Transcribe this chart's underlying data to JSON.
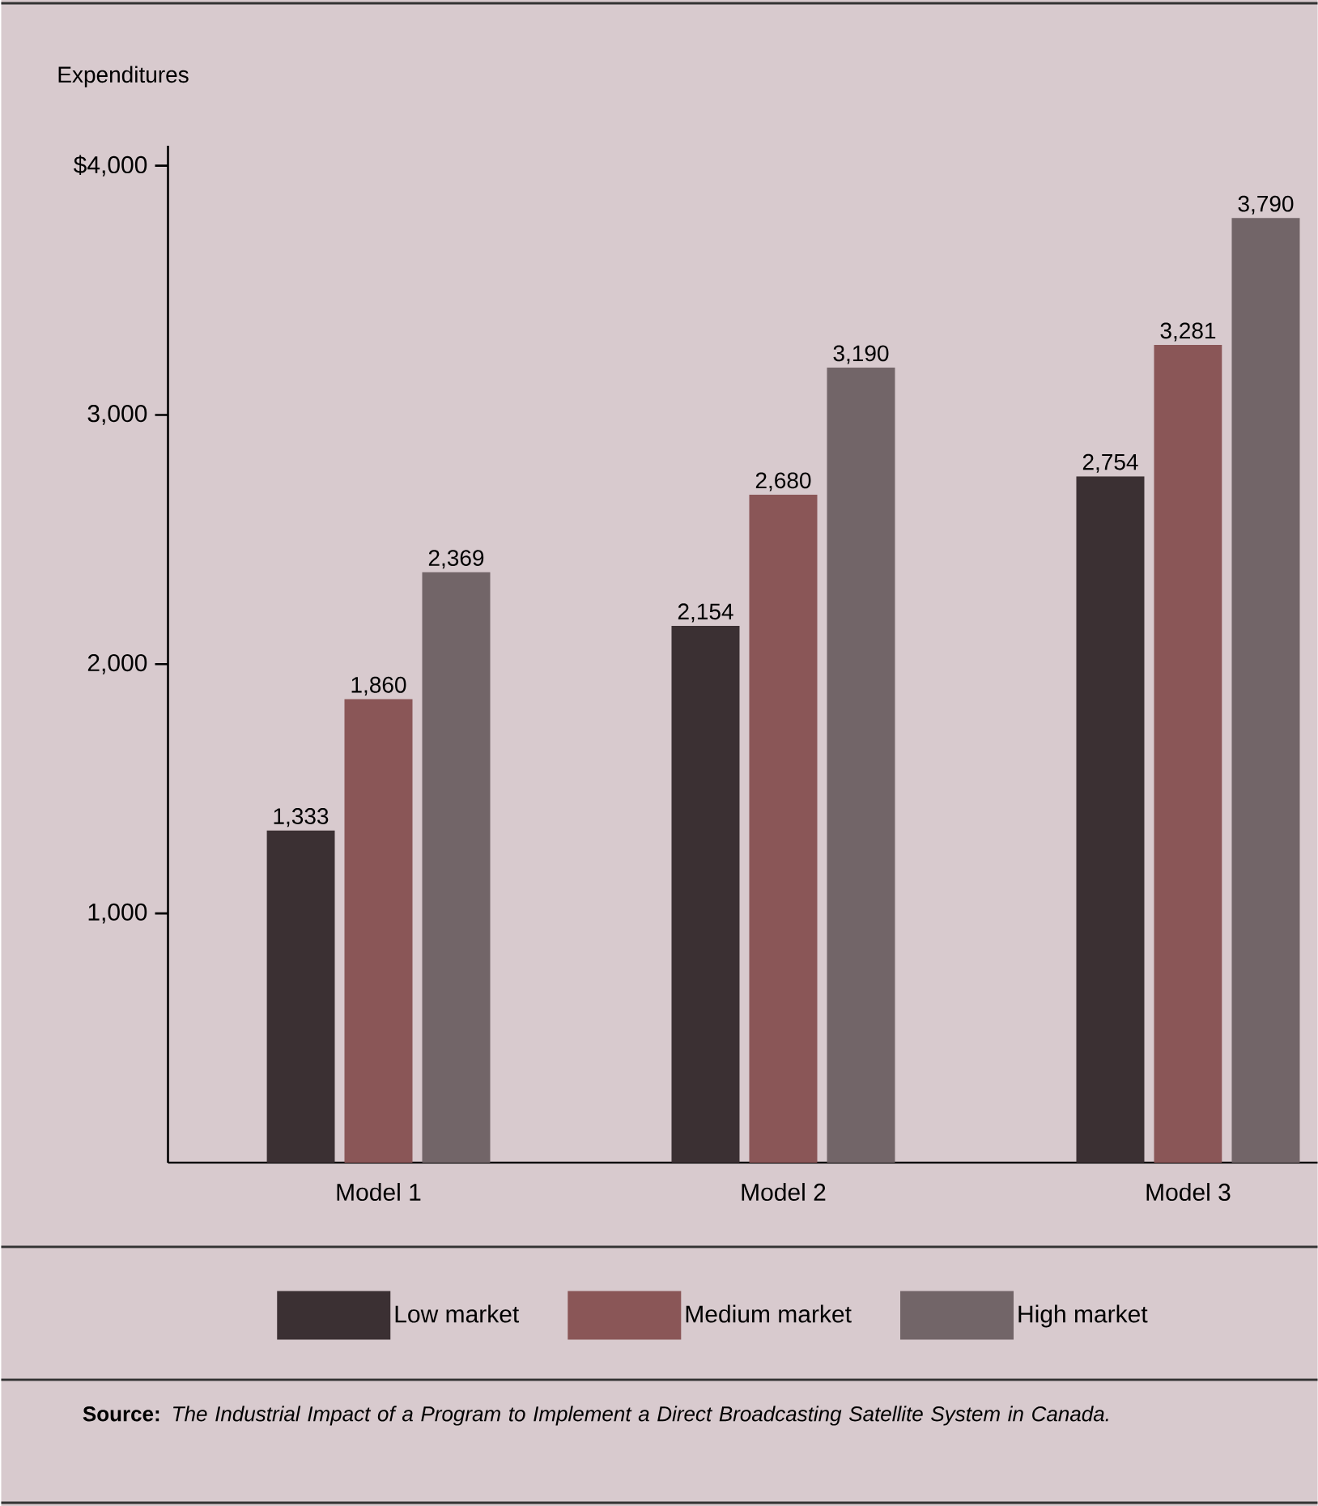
{
  "chart_data": {
    "type": "bar",
    "ylabel": "Expenditures",
    "categories": [
      "Model 1",
      "Model 2",
      "Model 3"
    ],
    "series": [
      {
        "name": "Low market",
        "color": "#3b3033",
        "values": [
          1333,
          2154,
          2754
        ],
        "value_labels": [
          "1,333",
          "2,154",
          "2,754"
        ]
      },
      {
        "name": "Medium market",
        "color": "#8a5657",
        "values": [
          1860,
          2680,
          3281
        ],
        "value_labels": [
          "1,860",
          "2,680",
          "3,281"
        ]
      },
      {
        "name": "High market",
        "color": "#726568",
        "values": [
          2369,
          3190,
          3790
        ],
        "value_labels": [
          "2,369",
          "3,190",
          "3,790"
        ]
      }
    ],
    "ylim": [
      0,
      4080
    ],
    "yticks": [
      {
        "value": 1000,
        "label": "1,000"
      },
      {
        "value": 2000,
        "label": "2,000"
      },
      {
        "value": 3000,
        "label": "3,000"
      },
      {
        "value": 4000,
        "label": "$4,000"
      }
    ],
    "grid": false,
    "legend": "bottom",
    "annotations": [
      "**Source:** *The Industrial Impact of a Program to Implement a Direct Broadcasting Satellite System in Canada.*"
    ]
  }
}
